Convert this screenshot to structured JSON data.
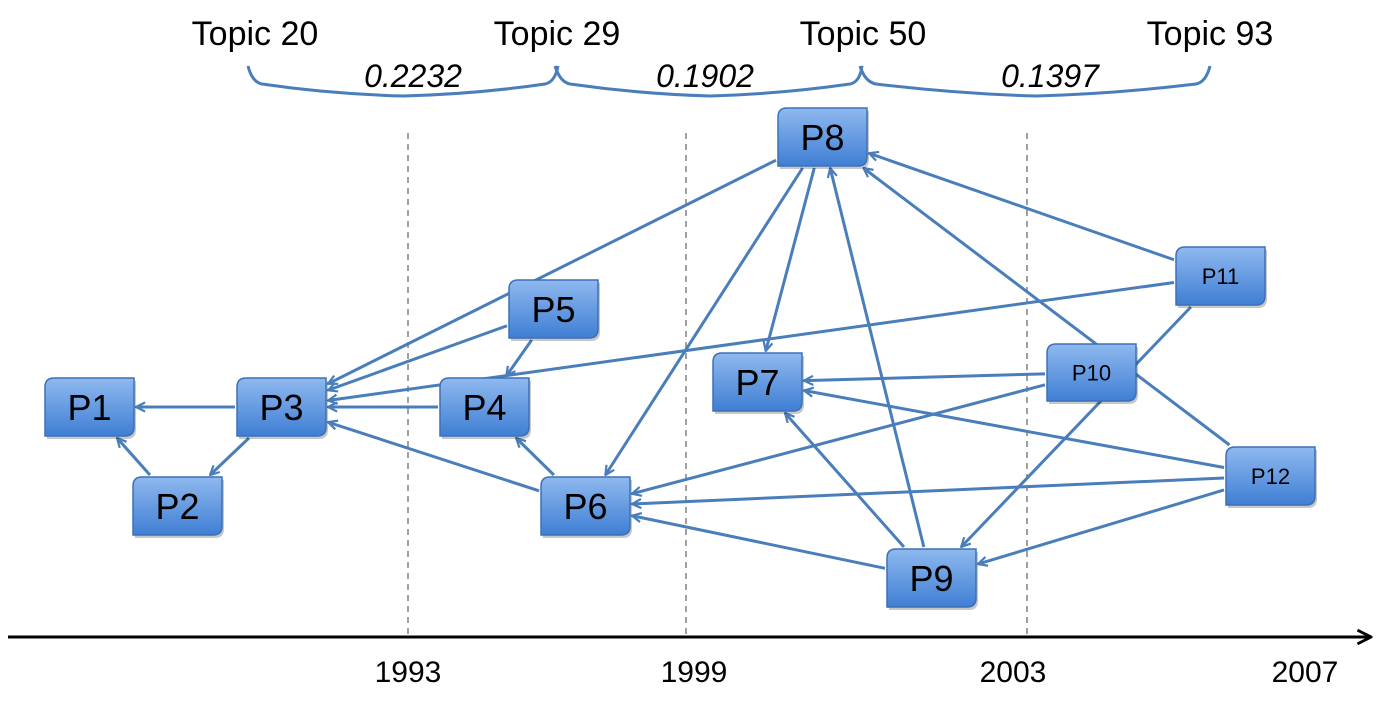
{
  "topics": {
    "labels": [
      "Topic 20",
      "Topic 29",
      "Topic 50",
      "Topic 93"
    ],
    "similarities": [
      "0.2232",
      "0.1902",
      "0.1397"
    ]
  },
  "timeline": {
    "years": [
      "1993",
      "1999",
      "2003",
      "2007"
    ]
  },
  "papers": [
    "P1",
    "P2",
    "P3",
    "P4",
    "P5",
    "P6",
    "P7",
    "P8",
    "P9",
    "P10",
    "P11",
    "P12"
  ],
  "citations": [
    [
      "P3",
      "P1"
    ],
    [
      "P2",
      "P1"
    ],
    [
      "P3",
      "P2"
    ],
    [
      "P4",
      "P3"
    ],
    [
      "P5",
      "P3"
    ],
    [
      "P5",
      "P4"
    ],
    [
      "P6",
      "P3"
    ],
    [
      "P6",
      "P4"
    ],
    [
      "P8",
      "P3"
    ],
    [
      "P8",
      "P6"
    ],
    [
      "P8",
      "P7"
    ],
    [
      "P9",
      "P8"
    ],
    [
      "P9",
      "P7"
    ],
    [
      "P9",
      "P6"
    ],
    [
      "P10",
      "P7"
    ],
    [
      "P10",
      "P6"
    ],
    [
      "P11",
      "P8"
    ],
    [
      "P11",
      "P3"
    ],
    [
      "P11",
      "P9"
    ],
    [
      "P12",
      "P8"
    ],
    [
      "P12",
      "P7"
    ],
    [
      "P12",
      "P6"
    ],
    [
      "P12",
      "P9"
    ]
  ],
  "colors": {
    "node_fill_top": "#8fb9ef",
    "node_fill_bottom": "#3f7fd4",
    "node_stroke": "#3c70b6",
    "edge": "#4a7ebb",
    "brace": "#4a7ebb",
    "axis": "#000000",
    "divider": "#888888"
  }
}
